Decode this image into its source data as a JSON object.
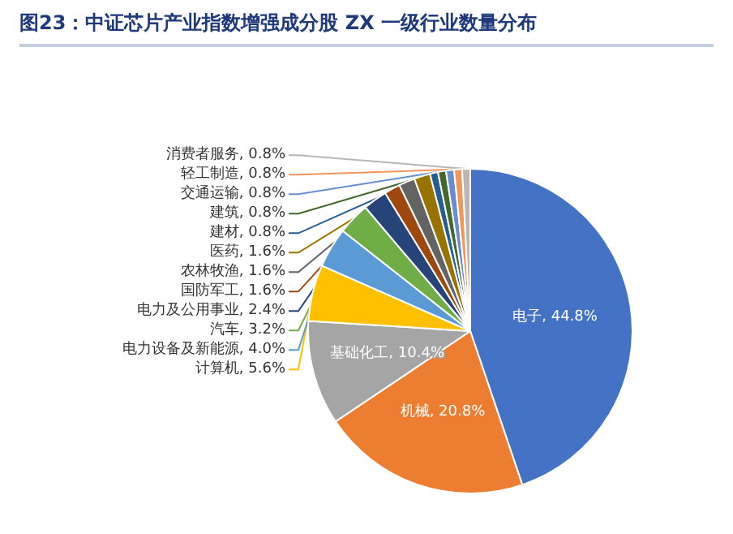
{
  "chart_data": {
    "type": "pie",
    "title": "图23：中证芯片产业指数增强成分股 ZX 一级行业数量分布",
    "categories": [
      "电子",
      "机械",
      "基础化工",
      "计算机",
      "电力设备及新能源",
      "汽车",
      "电力及公用事业",
      "国防军工",
      "农林牧渔",
      "医药",
      "建材",
      "建筑",
      "交通运输",
      "轻工制造",
      "消费者服务"
    ],
    "values": [
      44.8,
      20.8,
      10.4,
      5.6,
      4.0,
      3.2,
      2.4,
      1.6,
      1.6,
      1.6,
      0.8,
      0.8,
      0.8,
      0.8,
      0.8
    ],
    "colors": [
      "#4472c4",
      "#ed7d31",
      "#a5a5a5",
      "#ffc000",
      "#5b9bd5",
      "#70ad47",
      "#264478",
      "#9e480e",
      "#636363",
      "#997300",
      "#255e91",
      "#43682b",
      "#698ed0",
      "#f1975a",
      "#b7b7b7"
    ],
    "value_labels": [
      "44.8%",
      "20.8%",
      "10.4%",
      "5.6%",
      "4.0%",
      "3.2%",
      "2.4%",
      "1.6%",
      "1.6%",
      "1.6%",
      "0.8%",
      "0.8%",
      "0.8%",
      "0.8%",
      "0.8%"
    ],
    "data_labels": true,
    "legend": false
  }
}
